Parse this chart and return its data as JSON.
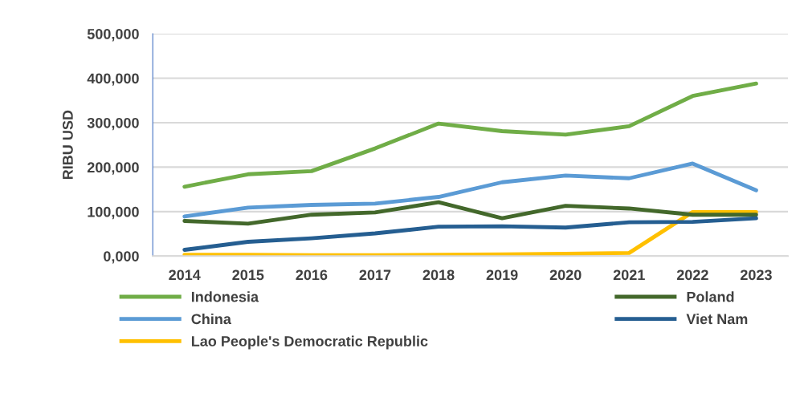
{
  "chart_data": {
    "type": "line",
    "ylabel": "RIBU USD",
    "categories": [
      "2014",
      "2015",
      "2016",
      "2017",
      "2018",
      "2019",
      "2020",
      "2021",
      "2022",
      "2023"
    ],
    "series": [
      {
        "name": "Indonesia",
        "color": "#70ad47",
        "values": [
          156000,
          184000,
          191000,
          242000,
          298000,
          281000,
          273000,
          292000,
          360000,
          388000
        ]
      },
      {
        "name": "China",
        "color": "#5b9bd5",
        "values": [
          89000,
          109000,
          115000,
          118000,
          133000,
          166000,
          181000,
          175000,
          208000,
          148000
        ]
      },
      {
        "name": "Lao People's Democratic Republic",
        "color": "#ffc000",
        "values": [
          3000,
          3000,
          2000,
          2000,
          3000,
          4000,
          5000,
          7000,
          99000,
          99000
        ]
      },
      {
        "name": "Poland",
        "color": "#43682b",
        "values": [
          79000,
          73000,
          93000,
          98000,
          121000,
          85000,
          113000,
          107000,
          93000,
          93000
        ]
      },
      {
        "name": "Viet Nam",
        "color": "#255e91",
        "values": [
          14000,
          32000,
          40000,
          51000,
          66000,
          67000,
          64000,
          76000,
          77000,
          85000
        ]
      }
    ],
    "ylim": [
      0,
      500000
    ],
    "yticks": [
      {
        "value": 0,
        "label": "0,000"
      },
      {
        "value": 100000,
        "label": "100,000"
      },
      {
        "value": 200000,
        "label": "200,000"
      },
      {
        "value": 300000,
        "label": "300,000"
      },
      {
        "value": 400000,
        "label": "400,000"
      },
      {
        "value": 500000,
        "label": "500,000"
      }
    ],
    "grid": "y",
    "legend": "bottom",
    "marker": "none",
    "line_style": "solid"
  }
}
